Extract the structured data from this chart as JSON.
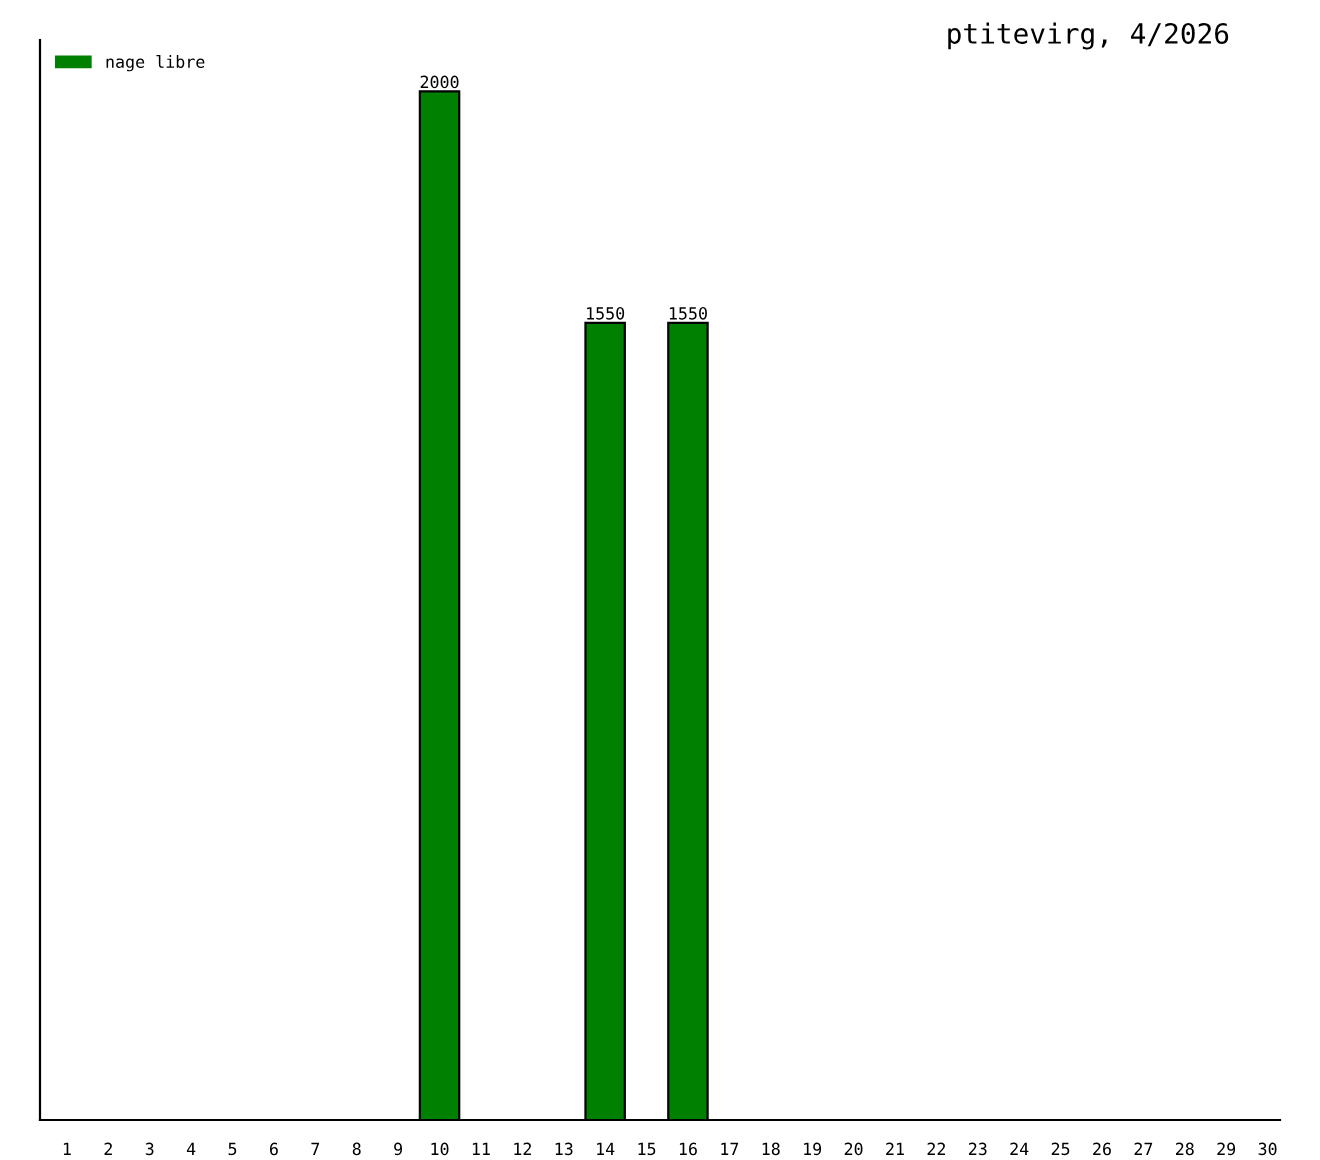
{
  "chart_data": {
    "type": "bar",
    "title": "ptitevirg, 4/2026",
    "categories": [
      "1",
      "2",
      "3",
      "4",
      "5",
      "6",
      "7",
      "8",
      "9",
      "10",
      "11",
      "12",
      "13",
      "14",
      "15",
      "16",
      "17",
      "18",
      "19",
      "20",
      "21",
      "22",
      "23",
      "24",
      "25",
      "26",
      "27",
      "28",
      "29",
      "30"
    ],
    "series": [
      {
        "name": "nage libre",
        "color": "#008000",
        "values": [
          null,
          null,
          null,
          null,
          null,
          null,
          null,
          null,
          null,
          2000,
          null,
          null,
          null,
          1550,
          null,
          1550,
          null,
          null,
          null,
          null,
          null,
          null,
          null,
          null,
          null,
          null,
          null,
          null,
          null,
          null
        ]
      }
    ],
    "data_labels": true,
    "legend": "top left",
    "grid": false
  }
}
